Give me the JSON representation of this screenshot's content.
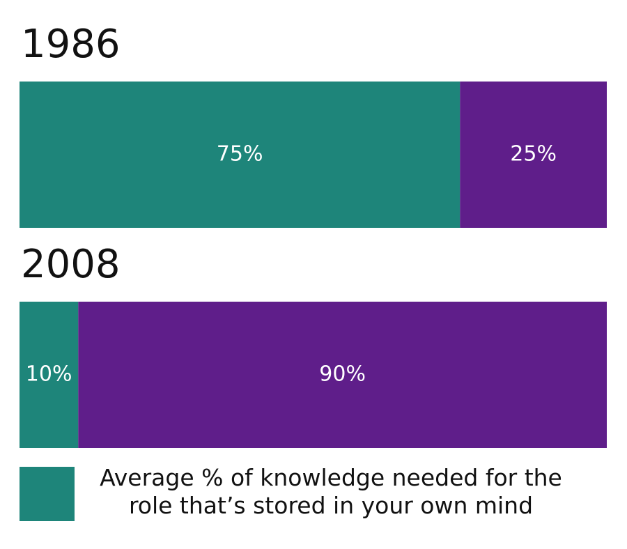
{
  "chart_data": {
    "type": "stacked-bar-100",
    "categories": [
      "1986",
      "2008"
    ],
    "series": [
      {
        "name": "Average % of knowledge needed for the role that’s stored in your own mind",
        "color": "#1e857a",
        "values": [
          75,
          10
        ],
        "value_labels": [
          "75%",
          "10%"
        ]
      },
      {
        "color": "#5f1e8a",
        "values": [
          25,
          90
        ],
        "value_labels": [
          "25%",
          "90%"
        ]
      }
    ]
  }
}
